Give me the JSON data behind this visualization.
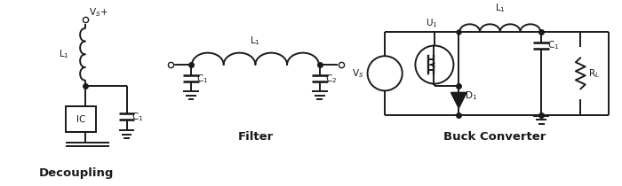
{
  "bg_color": "#ffffff",
  "line_color": "#1a1a1a",
  "line_width": 1.4,
  "title_decoupling": "Decoupling",
  "title_filter": "Filter",
  "title_buck": "Buck Converter",
  "label_L1": "L$_1$",
  "label_C1": "C$_1$",
  "label_C2": "C$_2$",
  "label_IC": "IC",
  "label_Vs_plus": "V$_S$+",
  "label_Vs": "V$_S$",
  "label_U1": "U$_1$",
  "label_D1": "D$_1$",
  "label_RL": "R$_L$",
  "font_size_label": 7.5,
  "font_size_title": 9.5
}
